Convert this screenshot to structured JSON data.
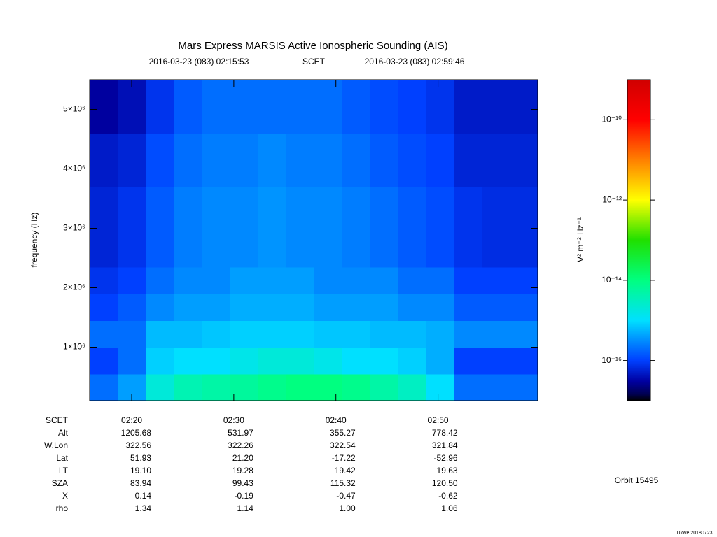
{
  "chart_data": {
    "type": "spectrogram",
    "title": "Mars Express MARSIS Active Ionospheric Sounding (AIS)",
    "start_time": "2016-03-23 (083) 02:15:53",
    "time_system": "SCET",
    "end_time": "2016-03-23 (083) 02:59:46",
    "y_label": "frequency (Hz)",
    "colorbar_label": "V² m⁻² Hz⁻¹",
    "xlim": [
      "2016-03-23T02:15:53",
      "2016-03-23T02:59:46"
    ],
    "xticks": [
      {
        "value": "2016-03-23T02:20:00",
        "label": "02:20"
      },
      {
        "value": "2016-03-23T02:30:00",
        "label": "02:30"
      },
      {
        "value": "2016-03-23T02:40:00",
        "label": "02:40"
      },
      {
        "value": "2016-03-23T02:50:00",
        "label": "02:50"
      }
    ],
    "ylim": [
      100000,
      5500000
    ],
    "yticks": [
      {
        "value": 1000000,
        "label": "1×10⁶"
      },
      {
        "value": 2000000,
        "label": "2×10⁶"
      },
      {
        "value": 3000000,
        "label": "3×10⁶"
      },
      {
        "value": 4000000,
        "label": "4×10⁶"
      },
      {
        "value": 5000000,
        "label": "5×10⁶"
      }
    ],
    "clim": [
      1e-17,
      1e-09
    ],
    "color_scale": "log",
    "cticks": [
      {
        "value": 1e-16,
        "label": "10⁻¹⁶"
      },
      {
        "value": 1e-14,
        "label": "10⁻¹⁴"
      },
      {
        "value": 1e-12,
        "label": "10⁻¹²"
      },
      {
        "value": 1e-10,
        "label": "10⁻¹⁰"
      }
    ],
    "z": [
      [
        2e-16,
        4e-16,
        2e-15,
        4e-15,
        5e-15,
        6e-15,
        8e-15,
        1e-14,
        1e-14,
        8e-15,
        5e-15,
        3e-15,
        1e-15,
        2e-16,
        2e-16,
        2e-16
      ],
      [
        1e-16,
        2e-16,
        8e-16,
        1e-15,
        1e-15,
        1.5e-15,
        2e-15,
        2e-15,
        1.5e-15,
        1e-15,
        1e-15,
        8e-16,
        5e-16,
        1e-16,
        1e-16,
        1e-16
      ],
      [
        2e-16,
        2e-16,
        6e-16,
        6e-16,
        7e-16,
        8e-16,
        8e-16,
        8e-16,
        7e-16,
        7e-16,
        6e-16,
        6e-16,
        5e-16,
        3e-16,
        3e-16,
        3e-16
      ],
      [
        1e-16,
        1.5e-16,
        3e-16,
        4e-16,
        4e-16,
        5e-16,
        5e-16,
        5e-16,
        4e-16,
        4e-16,
        4e-16,
        3e-16,
        3e-16,
        1.5e-16,
        1.5e-16,
        1.5e-16
      ],
      [
        8e-17,
        1e-16,
        2e-16,
        3e-16,
        3e-16,
        4e-16,
        4e-16,
        4e-16,
        3e-16,
        3e-16,
        3e-16,
        2e-16,
        2e-16,
        1e-16,
        1e-16,
        1e-16
      ],
      [
        6e-17,
        8e-17,
        1.5e-16,
        2.5e-16,
        3e-16,
        3e-16,
        3.5e-16,
        3e-16,
        3e-16,
        2.5e-16,
        2e-16,
        1.5e-16,
        1.2e-16,
        8e-17,
        7e-17,
        7e-17
      ],
      [
        6e-17,
        8e-17,
        1.5e-16,
        2.5e-16,
        3e-16,
        3e-16,
        3.5e-16,
        3e-16,
        3e-16,
        2.5e-16,
        2e-16,
        1.5e-16,
        1.2e-16,
        8e-17,
        7e-17,
        7e-17
      ],
      [
        6e-17,
        8e-17,
        1.5e-16,
        2.5e-16,
        3e-16,
        3e-16,
        3.5e-16,
        3e-16,
        3e-16,
        2.5e-16,
        2e-16,
        1.5e-16,
        1.2e-16,
        8e-17,
        7e-17,
        7e-17
      ],
      [
        5e-17,
        6e-17,
        1.2e-16,
        2e-16,
        2.5e-16,
        2.5e-16,
        3e-16,
        2.5e-16,
        2.5e-16,
        2e-16,
        1.5e-16,
        1.2e-16,
        1e-16,
        6e-17,
        6e-17,
        6e-17
      ],
      [
        5e-17,
        6e-17,
        1.2e-16,
        2e-16,
        2.5e-16,
        2.5e-16,
        3e-16,
        2.5e-16,
        2.5e-16,
        2e-16,
        1.5e-16,
        1.2e-16,
        1e-16,
        6e-17,
        6e-17,
        6e-17
      ],
      [
        3e-17,
        4e-17,
        8e-17,
        1.5e-16,
        2e-16,
        2e-16,
        2e-16,
        2e-16,
        2e-16,
        1.5e-16,
        1.2e-16,
        1e-16,
        8e-17,
        5e-17,
        5e-17,
        5e-17
      ],
      [
        3e-17,
        4e-17,
        8e-17,
        1.5e-16,
        2e-16,
        2e-16,
        2e-16,
        2e-16,
        2e-16,
        1.5e-16,
        1.2e-16,
        1e-16,
        8e-17,
        5e-17,
        5e-17,
        5e-17
      ]
    ]
  },
  "ephemeris": {
    "time_label": "SCET",
    "rows": [
      {
        "label": "Alt",
        "values": [
          "1205.68",
          "531.97",
          "355.27",
          "778.42"
        ]
      },
      {
        "label": "W.Lon",
        "values": [
          "322.56",
          "322.26",
          "322.54",
          "321.84"
        ]
      },
      {
        "label": "Lat",
        "values": [
          "51.93",
          "21.20",
          "-17.22",
          "-52.96"
        ]
      },
      {
        "label": "LT",
        "values": [
          "19.10",
          "19.28",
          "19.42",
          "19.63"
        ]
      },
      {
        "label": "SZA",
        "values": [
          "83.94",
          "99.43",
          "115.32",
          "120.50"
        ]
      },
      {
        "label": "X",
        "values": [
          "0.14",
          "-0.19",
          "-0.47",
          "-0.62"
        ]
      },
      {
        "label": "rho",
        "values": [
          "1.34",
          "1.14",
          "1.00",
          "1.06"
        ]
      }
    ]
  },
  "orbit_label": "Orbit 15495",
  "footer": "Ulove 20180723"
}
